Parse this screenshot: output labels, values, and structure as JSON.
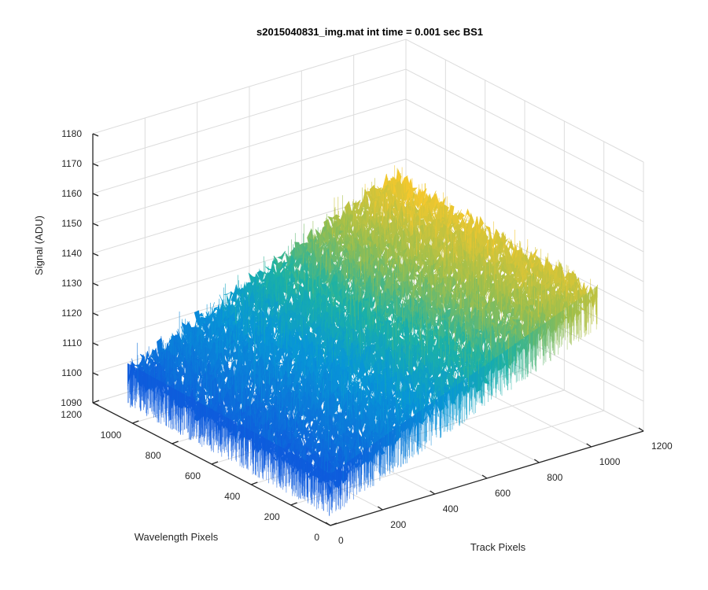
{
  "chart_data": {
    "type": "surface3d",
    "title": "s2015040831_img.mat int time = 0.001 sec   BS1",
    "xlabel": "Track Pixels",
    "ylabel": "Wavelength Pixels",
    "zlabel": "Signal (ADU)",
    "xlim": [
      0,
      1200
    ],
    "ylim": [
      0,
      1200
    ],
    "zlim": [
      1090,
      1180
    ],
    "x_ticks": [
      "0",
      "200",
      "400",
      "600",
      "800",
      "1000",
      "1200"
    ],
    "y_ticks": [
      "0",
      "200",
      "400",
      "600",
      "800",
      "1000",
      "1200"
    ],
    "z_ticks": [
      "1090",
      "1100",
      "1110",
      "1120",
      "1130",
      "1140",
      "1150",
      "1160",
      "1170",
      "1180"
    ],
    "x_data_range": [
      0,
      1024
    ],
    "y_data_range": [
      0,
      1024
    ],
    "surface_corners": [
      {
        "x": 0,
        "y": 0,
        "z": 1104
      },
      {
        "x": 1024,
        "y": 0,
        "z": 1140
      },
      {
        "x": 0,
        "y": 1024,
        "z": 1106
      },
      {
        "x": 1024,
        "y": 1024,
        "z": 1144
      }
    ],
    "noise_amplitude": 8,
    "colormap": "parula",
    "grid": true,
    "colors": {
      "low": "#0a5fd9",
      "mid": "#20b2aa",
      "high": "#f4c430"
    }
  }
}
